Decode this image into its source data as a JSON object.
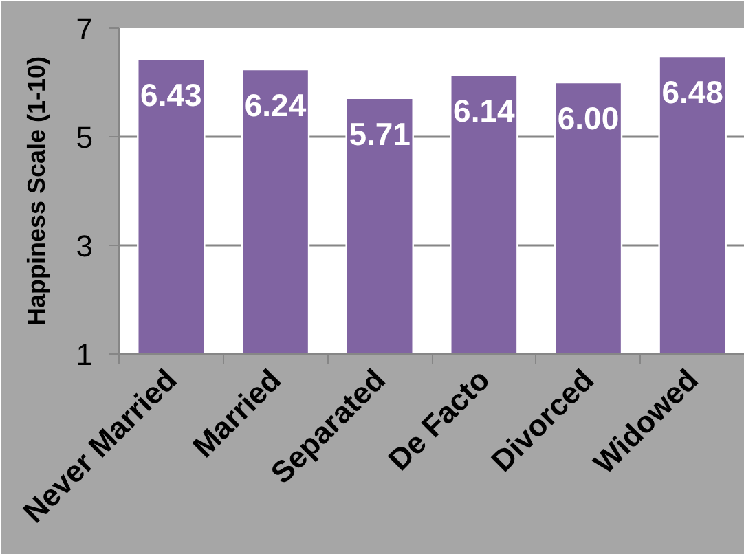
{
  "chart_data": {
    "type": "bar",
    "ylabel": "Happiness Scale (1-10)",
    "categories": [
      "Never Married",
      "Married",
      "Separated",
      "De Facto",
      "Divorced",
      "Widowed"
    ],
    "values": [
      6.43,
      6.24,
      5.71,
      6.14,
      6.0,
      6.48
    ],
    "color": "#8064a2",
    "value_labels": [
      "6.43",
      "6.24",
      "5.71",
      "6.14",
      "6.00",
      "6.48"
    ],
    "ylim": [
      1,
      7
    ],
    "yticks": [
      1,
      3,
      5,
      7
    ],
    "grid": "y"
  }
}
